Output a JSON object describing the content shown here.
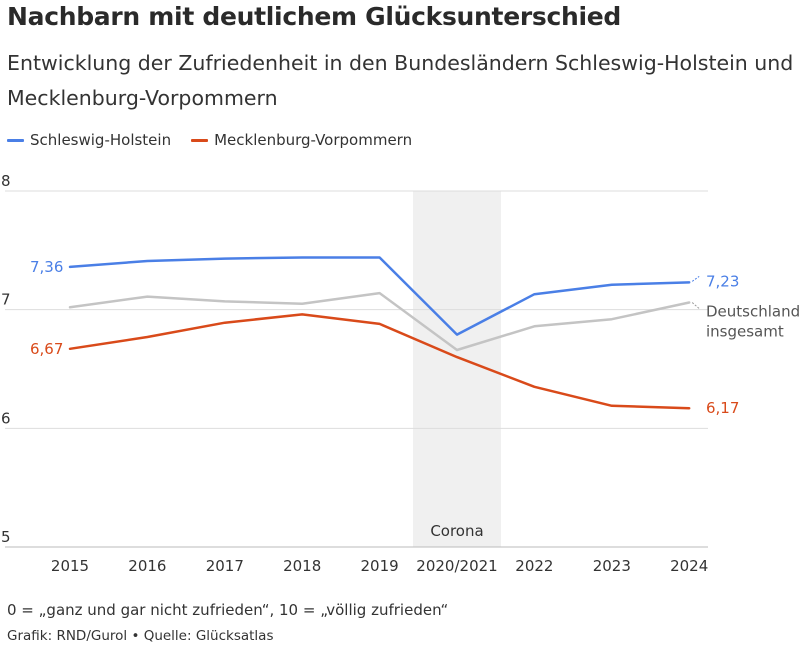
{
  "title": "Nachbarn mit deutlichem Glücksunterschied",
  "subtitle": "Entwicklung der Zufriedenheit in den Bundesländern Schleswig-Holstein und Mecklenburg-Vorpommern",
  "legend": [
    {
      "name": "Schleswig-Holstein",
      "color": "#4a7fe6"
    },
    {
      "name": "Mecklenburg-Vorpommern",
      "color": "#d94a1a"
    }
  ],
  "footnote": "0 = „ganz und gar nicht zufrieden“, 10 = „völlig zufrieden“",
  "source": "Grafik: RND/Gurol • Quelle: Glücksatlas",
  "chart_data": {
    "type": "line",
    "categories": [
      "2015",
      "2016",
      "2017",
      "2018",
      "2019",
      "2020/2021",
      "2022",
      "2023",
      "2024"
    ],
    "ylim": [
      5,
      8
    ],
    "yticks": [
      "5",
      "6",
      "7",
      "8"
    ],
    "grid": true,
    "shaded_band": {
      "category": "2020/2021",
      "label": "Corona",
      "color": "#f0f0f0"
    },
    "series": [
      {
        "name": "Schleswig-Holstein",
        "color": "#4a7fe6",
        "values": [
          7.36,
          7.41,
          7.43,
          7.44,
          7.44,
          6.79,
          7.13,
          7.21,
          7.23
        ],
        "start_label": "7,36",
        "end_label": "7,23"
      },
      {
        "name": "Deutschland insgesamt",
        "color": "#c4c4c4",
        "values": [
          7.02,
          7.11,
          7.07,
          7.05,
          7.14,
          6.66,
          6.86,
          6.92,
          7.06
        ],
        "end_label_lines": [
          "Deutschland",
          "insgesamt"
        ]
      },
      {
        "name": "Mecklenburg-Vorpommern",
        "color": "#d94a1a",
        "values": [
          6.67,
          6.77,
          6.89,
          6.96,
          6.88,
          6.6,
          6.35,
          6.19,
          6.17
        ],
        "start_label": "6,67",
        "end_label": "6,17"
      }
    ]
  }
}
